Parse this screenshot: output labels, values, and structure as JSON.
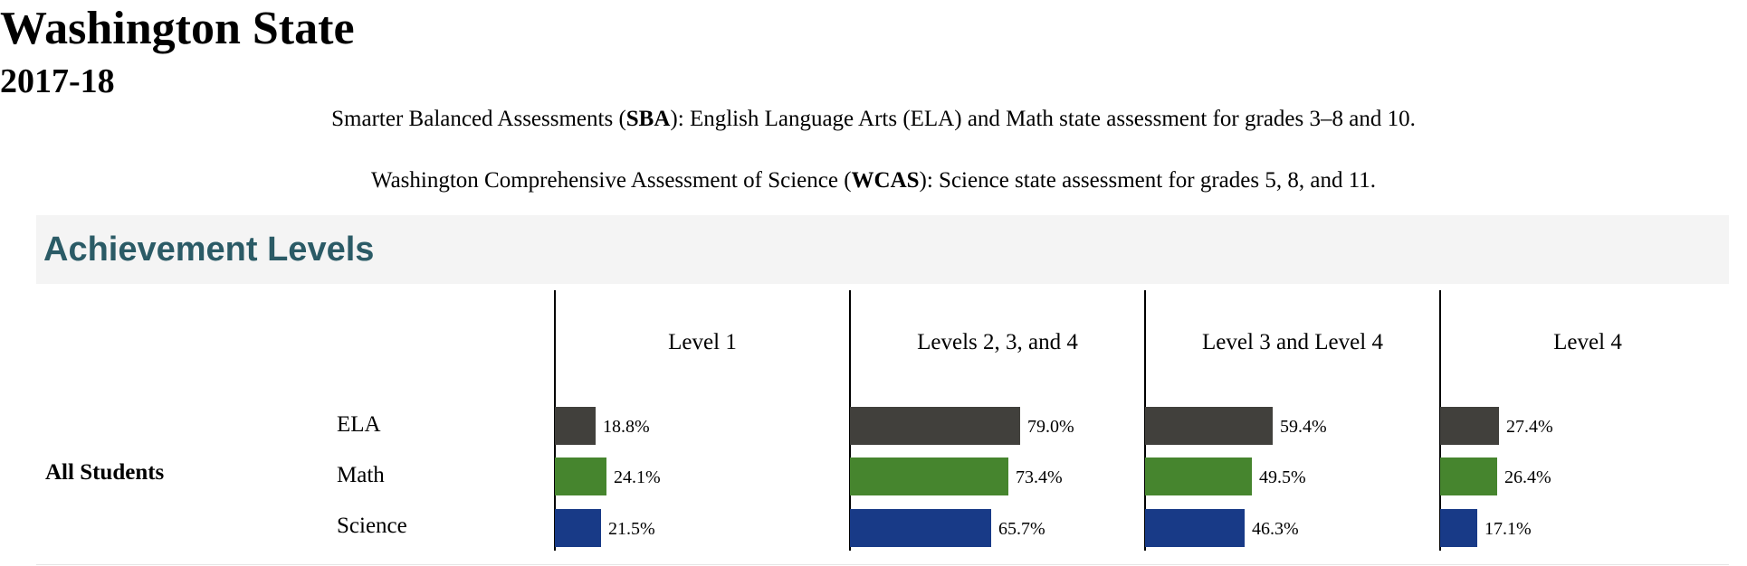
{
  "header": {
    "title": "Washington State",
    "year": "2017-18",
    "sba_line": {
      "before": "Smarter Balanced Assessments (",
      "bold": "SBA",
      "after": "): English Language Arts (ELA) and Math state assessment for grades 3–8 and 10."
    },
    "wcas_line": {
      "before": "Washington Comprehensive Assessment of Science (",
      "bold": "WCAS",
      "after": "): Science state assessment for grades 5, 8, and 11."
    }
  },
  "section": {
    "title": "Achievement Levels"
  },
  "colors": {
    "ELA": "#41403c",
    "Math": "#46852e",
    "Science": "#183a87",
    "section_title": "#2b5b66"
  },
  "chart_data": {
    "type": "bar",
    "orientation": "horizontal",
    "group": "All Students",
    "subjects": [
      "ELA",
      "Math",
      "Science"
    ],
    "panels": [
      {
        "name": "Level 1",
        "values": [
          18.8,
          24.1,
          21.5
        ],
        "labels": [
          "18.8%",
          "24.1%",
          "21.5%"
        ]
      },
      {
        "name": "Levels 2, 3, and 4",
        "values": [
          79.0,
          73.4,
          65.7
        ],
        "labels": [
          "79.0%",
          "73.4%",
          "65.7%"
        ]
      },
      {
        "name": "Level 3 and Level 4",
        "values": [
          59.4,
          49.5,
          46.3
        ],
        "labels": [
          "59.4%",
          "49.5%",
          "46.3%"
        ]
      },
      {
        "name": "Level 4",
        "values": [
          27.4,
          26.4,
          17.1
        ],
        "labels": [
          "27.4%",
          "26.4%",
          "17.1%"
        ]
      }
    ],
    "xlim": [
      0,
      100
    ]
  }
}
